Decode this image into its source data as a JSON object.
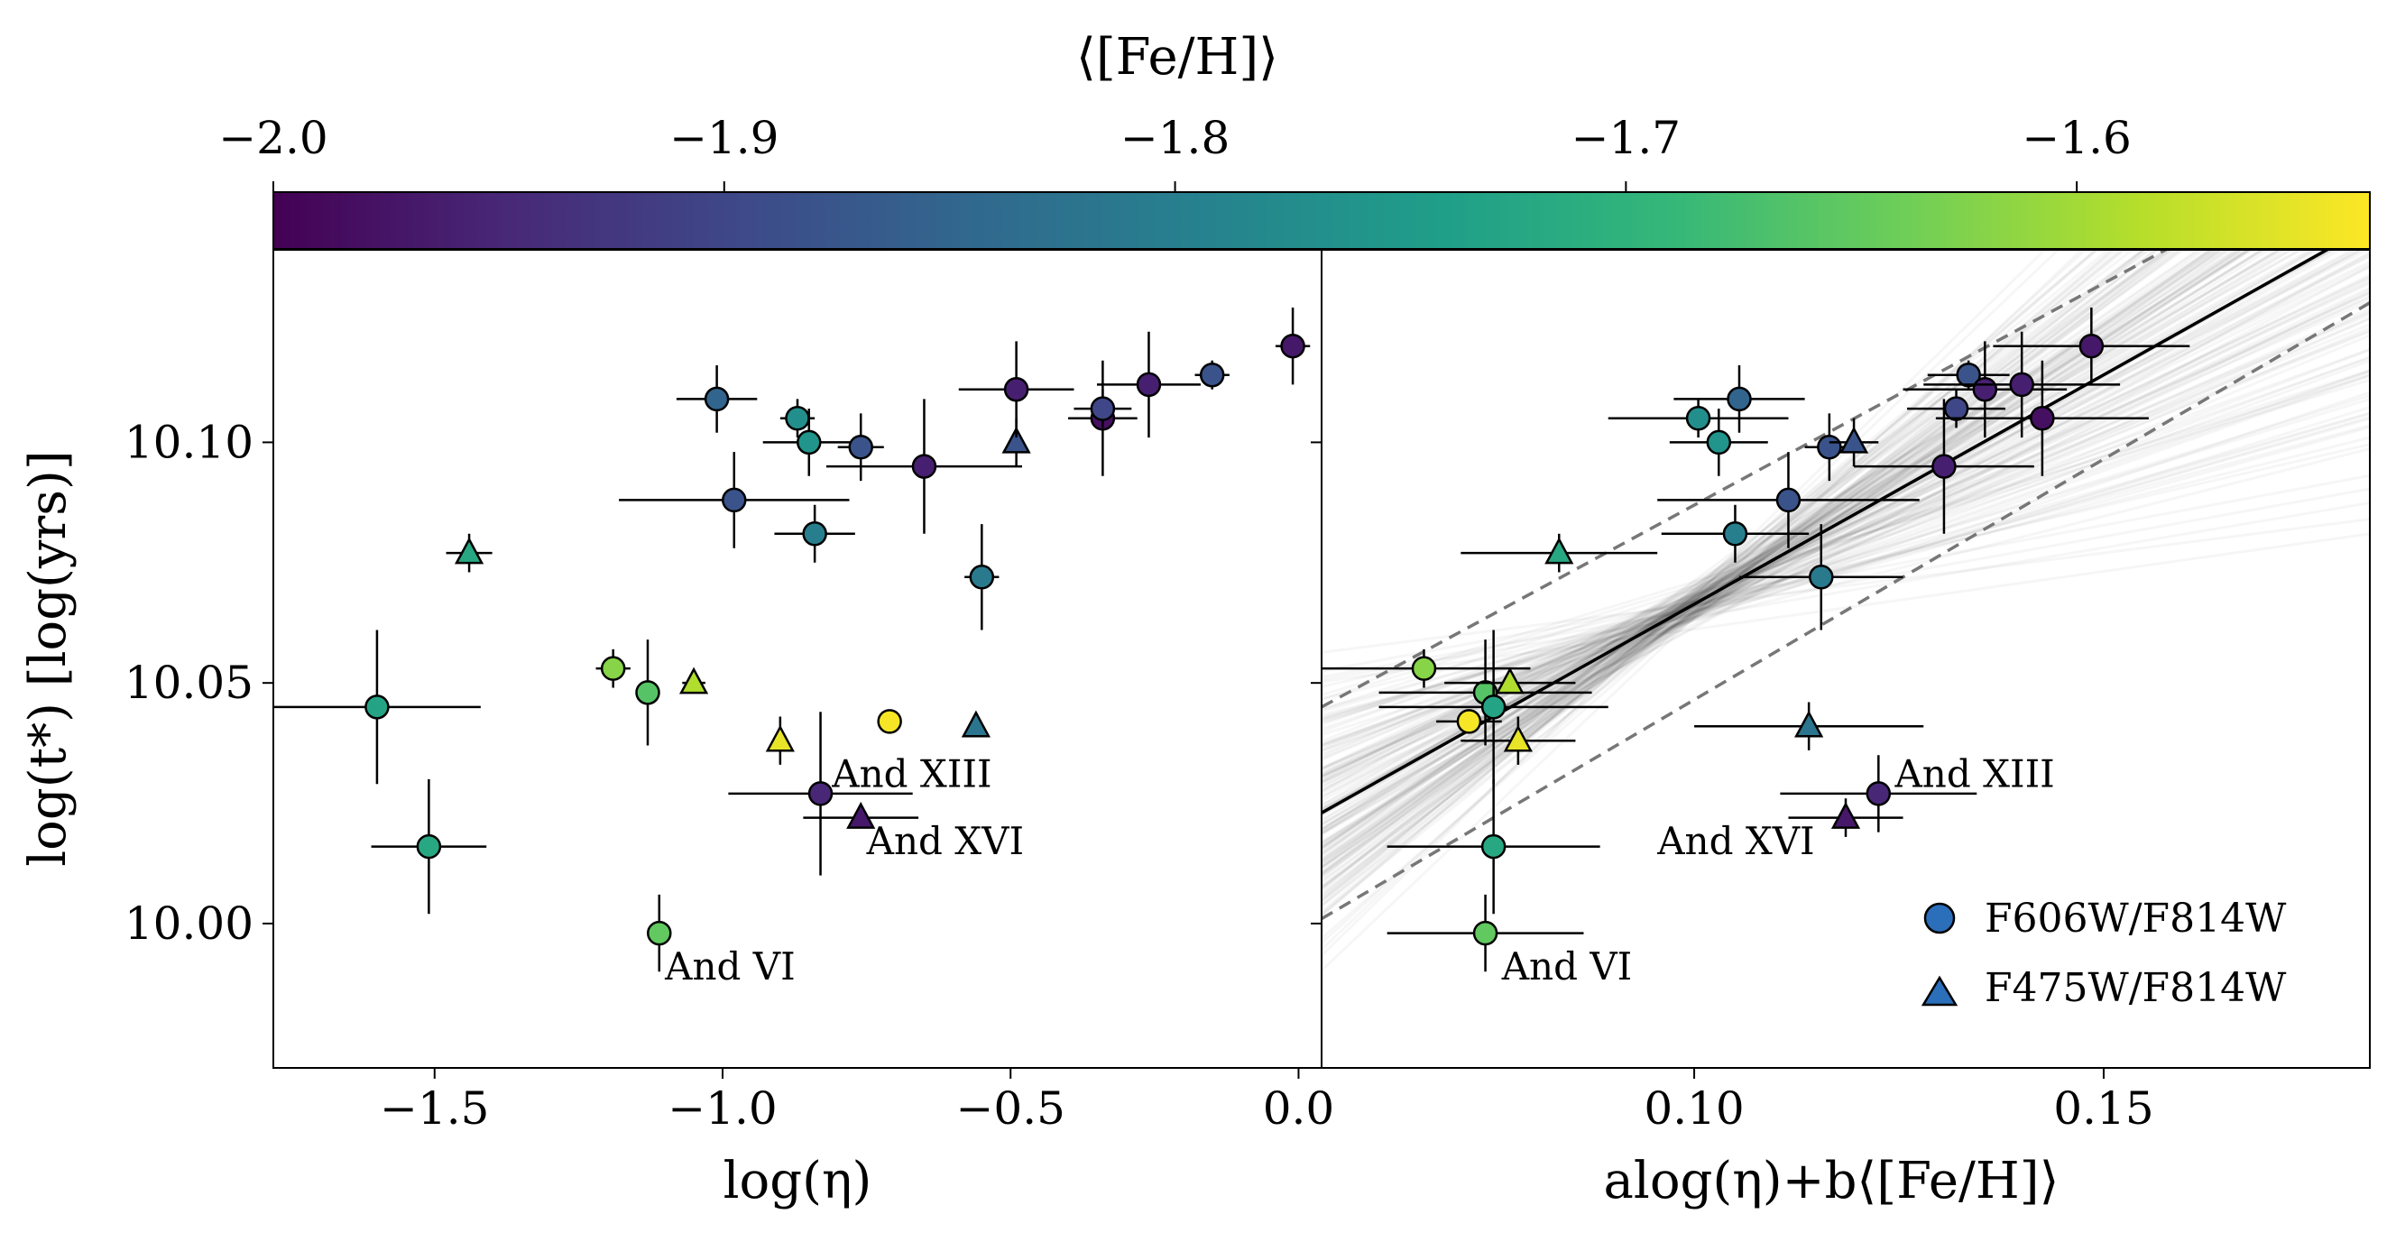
{
  "colorbar": {
    "label": "⟨[Fe/H]⟩",
    "range": [
      -2.0,
      -1.535
    ],
    "ticks": [
      -2.0,
      -1.9,
      -1.8,
      -1.7,
      -1.6
    ],
    "tick_labels": [
      "−2.0",
      "−1.9",
      "−1.8",
      "−1.7",
      "−1.6"
    ],
    "colormap": "viridis",
    "colors": [
      "#440154",
      "#482878",
      "#3e4989",
      "#31688e",
      "#26828e",
      "#1f9e89",
      "#35b779",
      "#6ece58",
      "#b5de2b",
      "#fde725"
    ]
  },
  "chart_data": [
    {
      "type": "scatter",
      "panel": "left",
      "xlabel": "log(η)",
      "ylabel": "log(t*) [log(yrs)]",
      "xlim": [
        -1.78,
        0.04
      ],
      "ylim": [
        9.97,
        10.14
      ],
      "xticks": [
        -1.5,
        -1.0,
        -0.5,
        0.0
      ],
      "xtick_labels": [
        "−1.5",
        "−1.0",
        "−0.5",
        "0.0"
      ],
      "yticks": [
        10.0,
        10.05,
        10.1
      ],
      "ytick_labels": [
        "10.00",
        "10.05",
        "10.10"
      ],
      "points": [
        {
          "x": -1.6,
          "y": 10.045,
          "xerr": 0.18,
          "yerr": 0.016,
          "feh": -1.73,
          "marker": "circle"
        },
        {
          "x": -1.51,
          "y": 10.016,
          "xerr": 0.1,
          "yerr": 0.014,
          "feh": -1.72,
          "marker": "circle"
        },
        {
          "x": -1.44,
          "y": 10.077,
          "xerr": 0.04,
          "yerr": 0.004,
          "feh": -1.72,
          "marker": "triangle"
        },
        {
          "x": -1.19,
          "y": 10.053,
          "xerr": 0.03,
          "yerr": 0.004,
          "feh": -1.62,
          "marker": "circle"
        },
        {
          "x": -1.13,
          "y": 10.048,
          "xerr": 0.02,
          "yerr": 0.011,
          "feh": -1.66,
          "marker": "circle"
        },
        {
          "x": -1.11,
          "y": 9.998,
          "xerr": 0.02,
          "yerr": 0.008,
          "feh": -1.65,
          "marker": "circle"
        },
        {
          "x": -1.05,
          "y": 10.05,
          "xerr": 0.02,
          "yerr": 0.0,
          "feh": -1.59,
          "marker": "triangle"
        },
        {
          "x": -1.01,
          "y": 10.109,
          "xerr": 0.07,
          "yerr": 0.007,
          "feh": -1.85,
          "marker": "circle"
        },
        {
          "x": -0.98,
          "y": 10.088,
          "xerr": 0.2,
          "yerr": 0.01,
          "feh": -1.88,
          "marker": "circle"
        },
        {
          "x": -0.9,
          "y": 10.038,
          "xerr": 0.01,
          "yerr": 0.005,
          "feh": -1.55,
          "marker": "triangle"
        },
        {
          "x": -0.87,
          "y": 10.105,
          "xerr": 0.03,
          "yerr": 0.004,
          "feh": -1.77,
          "marker": "circle"
        },
        {
          "x": -0.85,
          "y": 10.1,
          "xerr": 0.08,
          "yerr": 0.007,
          "feh": -1.76,
          "marker": "circle"
        },
        {
          "x": -0.84,
          "y": 10.081,
          "xerr": 0.07,
          "yerr": 0.006,
          "feh": -1.8,
          "marker": "circle"
        },
        {
          "x": -0.83,
          "y": 10.027,
          "xerr": 0.16,
          "yerr": 0.017,
          "feh": -1.95,
          "marker": "circle"
        },
        {
          "x": -0.76,
          "y": 10.022,
          "xerr": 0.1,
          "yerr": 0.0,
          "feh": -1.97,
          "marker": "triangle"
        },
        {
          "x": -0.76,
          "y": 10.099,
          "xerr": 0.04,
          "yerr": 0.007,
          "feh": -1.88,
          "marker": "circle"
        },
        {
          "x": -0.71,
          "y": 10.042,
          "xerr": 0.0,
          "yerr": 0.002,
          "feh": -1.54,
          "marker": "circle"
        },
        {
          "x": -0.65,
          "y": 10.095,
          "xerr": 0.17,
          "yerr": 0.014,
          "feh": -1.96,
          "marker": "circle"
        },
        {
          "x": -0.55,
          "y": 10.072,
          "xerr": 0.03,
          "yerr": 0.011,
          "feh": -1.81,
          "marker": "circle"
        },
        {
          "x": -0.56,
          "y": 10.041,
          "xerr": 0.0,
          "yerr": 0.0,
          "feh": -1.82,
          "marker": "triangle"
        },
        {
          "x": -0.49,
          "y": 10.1,
          "xerr": 0.0,
          "yerr": 0.005,
          "feh": -1.88,
          "marker": "triangle"
        },
        {
          "x": -0.49,
          "y": 10.111,
          "xerr": 0.1,
          "yerr": 0.01,
          "feh": -1.96,
          "marker": "circle"
        },
        {
          "x": -0.34,
          "y": 10.105,
          "xerr": 0.06,
          "yerr": 0.012,
          "feh": -1.98,
          "marker": "circle"
        },
        {
          "x": -0.34,
          "y": 10.107,
          "xerr": 0.05,
          "yerr": 0.004,
          "feh": -1.9,
          "marker": "circle"
        },
        {
          "x": -0.26,
          "y": 10.112,
          "xerr": 0.09,
          "yerr": 0.011,
          "feh": -1.96,
          "marker": "circle"
        },
        {
          "x": -0.15,
          "y": 10.114,
          "xerr": 0.03,
          "yerr": 0.003,
          "feh": -1.88,
          "marker": "circle"
        },
        {
          "x": -0.01,
          "y": 10.12,
          "xerr": 0.03,
          "yerr": 0.008,
          "feh": -1.97,
          "marker": "circle"
        }
      ],
      "annotations": [
        {
          "text": "And XIII",
          "x": -0.81,
          "y": 10.031
        },
        {
          "text": "And XVI",
          "x": -0.75,
          "y": 10.017
        },
        {
          "text": "And VI",
          "x": -1.1,
          "y": 9.991
        }
      ]
    },
    {
      "type": "scatter",
      "panel": "right",
      "xlabel": "alog(η)+b⟨[Fe/H]⟩",
      "xlim": [
        0.0545,
        0.1825
      ],
      "ylim": [
        9.97,
        10.14
      ],
      "xticks": [
        0.1,
        0.15
      ],
      "xtick_labels": [
        "0.10",
        "0.15"
      ],
      "fit_line": {
        "x": [
          0.0545,
          0.1825
        ],
        "y": [
          10.023,
          10.145
        ]
      },
      "fit_band": {
        "upper": [
          10.045,
          10.163
        ],
        "lower": [
          10.001,
          10.129
        ]
      },
      "points": [
        {
          "x": 0.067,
          "y": 10.053,
          "xerr": 0.013,
          "yerr": 0.004,
          "feh": -1.62,
          "marker": "circle"
        },
        {
          "x": 0.0725,
          "y": 10.042,
          "xerr": 0.004,
          "yerr": 0.002,
          "feh": -1.54,
          "marker": "circle"
        },
        {
          "x": 0.0745,
          "y": 10.048,
          "xerr": 0.013,
          "yerr": 0.011,
          "feh": -1.66,
          "marker": "circle"
        },
        {
          "x": 0.0755,
          "y": 10.045,
          "xerr": 0.014,
          "yerr": 0.016,
          "feh": -1.73,
          "marker": "circle"
        },
        {
          "x": 0.0755,
          "y": 10.016,
          "xerr": 0.013,
          "yerr": 0.014,
          "feh": -1.72,
          "marker": "circle"
        },
        {
          "x": 0.0745,
          "y": 9.998,
          "xerr": 0.012,
          "yerr": 0.008,
          "feh": -1.65,
          "marker": "circle"
        },
        {
          "x": 0.0775,
          "y": 10.05,
          "xerr": 0.008,
          "yerr": 0.0,
          "feh": -1.59,
          "marker": "triangle"
        },
        {
          "x": 0.0785,
          "y": 10.038,
          "xerr": 0.007,
          "yerr": 0.005,
          "feh": -1.55,
          "marker": "triangle"
        },
        {
          "x": 0.0835,
          "y": 10.077,
          "xerr": 0.012,
          "yerr": 0.004,
          "feh": -1.72,
          "marker": "triangle"
        },
        {
          "x": 0.1005,
          "y": 10.105,
          "xerr": 0.011,
          "yerr": 0.004,
          "feh": -1.77,
          "marker": "circle"
        },
        {
          "x": 0.103,
          "y": 10.1,
          "xerr": 0.006,
          "yerr": 0.007,
          "feh": -1.76,
          "marker": "circle"
        },
        {
          "x": 0.105,
          "y": 10.081,
          "xerr": 0.009,
          "yerr": 0.006,
          "feh": -1.8,
          "marker": "circle"
        },
        {
          "x": 0.1055,
          "y": 10.109,
          "xerr": 0.008,
          "yerr": 0.007,
          "feh": -1.85,
          "marker": "circle"
        },
        {
          "x": 0.1115,
          "y": 10.088,
          "xerr": 0.016,
          "yerr": 0.01,
          "feh": -1.88,
          "marker": "circle"
        },
        {
          "x": 0.1155,
          "y": 10.072,
          "xerr": 0.01,
          "yerr": 0.011,
          "feh": -1.81,
          "marker": "circle"
        },
        {
          "x": 0.114,
          "y": 10.041,
          "xerr": 0.014,
          "yerr": 0.005,
          "feh": -1.82,
          "marker": "triangle"
        },
        {
          "x": 0.1165,
          "y": 10.099,
          "xerr": 0.003,
          "yerr": 0.007,
          "feh": -1.88,
          "marker": "circle"
        },
        {
          "x": 0.1195,
          "y": 10.1,
          "xerr": 0.003,
          "yerr": 0.005,
          "feh": -1.88,
          "marker": "triangle"
        },
        {
          "x": 0.1185,
          "y": 10.022,
          "xerr": 0.007,
          "yerr": 0.004,
          "feh": -1.97,
          "marker": "triangle"
        },
        {
          "x": 0.1225,
          "y": 10.027,
          "xerr": 0.012,
          "yerr": 0.008,
          "feh": -1.95,
          "marker": "circle"
        },
        {
          "x": 0.1305,
          "y": 10.095,
          "xerr": 0.011,
          "yerr": 0.014,
          "feh": -1.96,
          "marker": "circle"
        },
        {
          "x": 0.132,
          "y": 10.107,
          "xerr": 0.006,
          "yerr": 0.004,
          "feh": -1.9,
          "marker": "circle"
        },
        {
          "x": 0.1335,
          "y": 10.114,
          "xerr": 0.005,
          "yerr": 0.003,
          "feh": -1.88,
          "marker": "circle"
        },
        {
          "x": 0.1355,
          "y": 10.111,
          "xerr": 0.01,
          "yerr": 0.01,
          "feh": -1.96,
          "marker": "circle"
        },
        {
          "x": 0.14,
          "y": 10.112,
          "xerr": 0.012,
          "yerr": 0.011,
          "feh": -1.96,
          "marker": "circle"
        },
        {
          "x": 0.1425,
          "y": 10.105,
          "xerr": 0.013,
          "yerr": 0.012,
          "feh": -1.98,
          "marker": "circle"
        },
        {
          "x": 0.1485,
          "y": 10.12,
          "xerr": 0.012,
          "yerr": 0.008,
          "feh": -1.97,
          "marker": "circle"
        }
      ],
      "annotations": [
        {
          "text": "And XIII",
          "x": 0.1245,
          "y": 10.031
        },
        {
          "text": "And XVI",
          "x": 0.0955,
          "y": 10.017
        },
        {
          "text": "And VI",
          "x": 0.0765,
          "y": 9.991
        }
      ],
      "legend": {
        "position": "lower-right",
        "entries": [
          {
            "label": "F606W/F814W",
            "marker": "circle"
          },
          {
            "label": "F475W/F814W",
            "marker": "triangle"
          }
        ]
      }
    }
  ]
}
